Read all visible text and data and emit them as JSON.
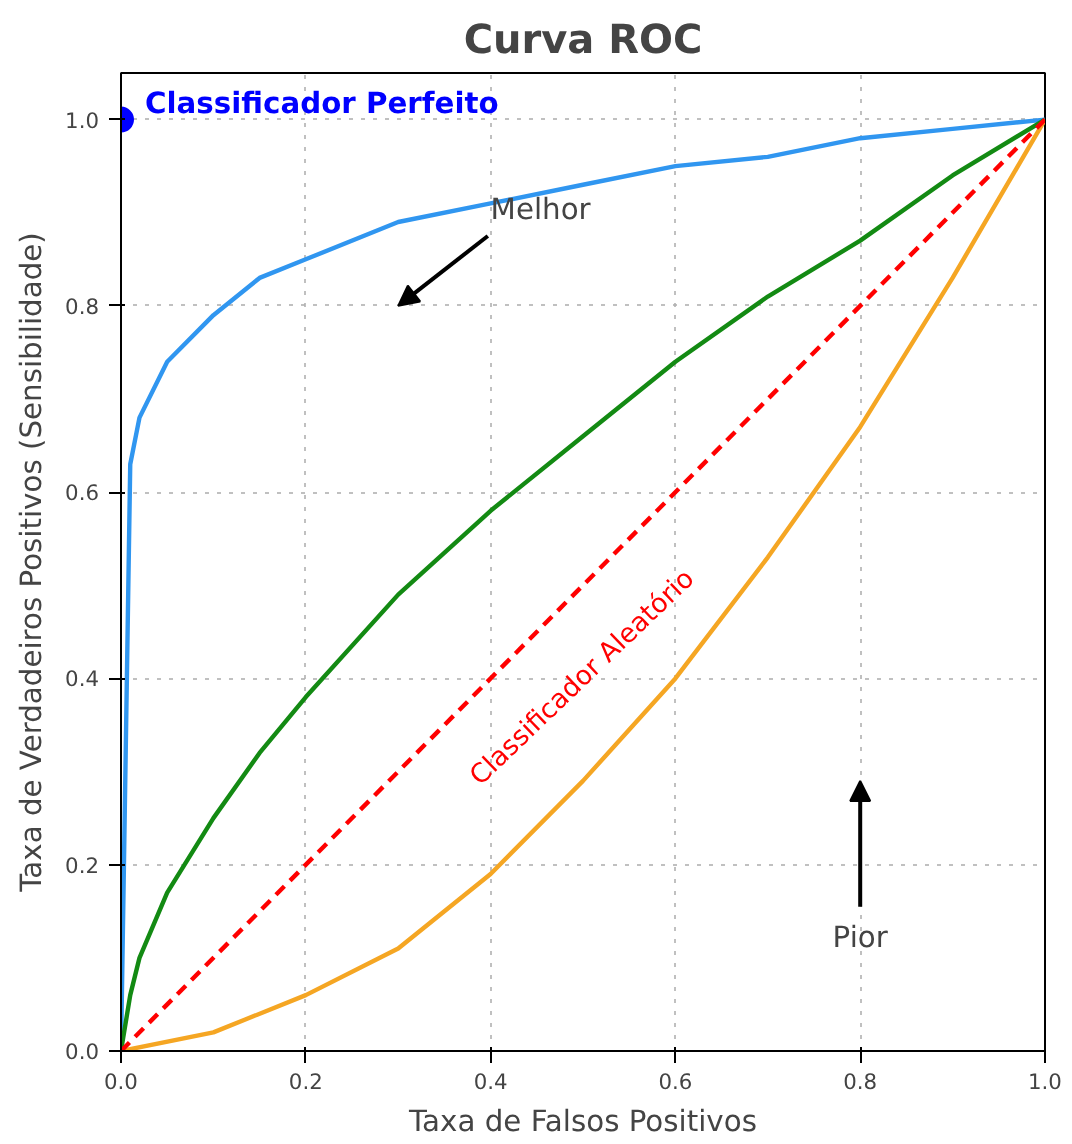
{
  "chart_data": {
    "type": "line",
    "title": "Curva ROC",
    "xlabel": "Taxa de Falsos Positivos",
    "ylabel": "Taxa de Verdadeiros Positivos (Sensibilidade)",
    "xlim": [
      0,
      1
    ],
    "ylim": [
      0,
      1.05
    ],
    "xticks": [
      {
        "value": 0,
        "label": "0.0"
      },
      0.2,
      0.4,
      0.6,
      0.8,
      {
        "value": 1,
        "label": "1.0"
      }
    ],
    "yticks": [
      {
        "value": 0,
        "label": "0.0"
      },
      0.2,
      0.4,
      0.6,
      0.8,
      {
        "value": 1,
        "label": "1.0"
      }
    ],
    "grid": true,
    "marker": "none",
    "line_style": "solid",
    "series": [
      {
        "color": "#3096f0",
        "x": [
          0,
          0.01,
          0.02,
          0.05,
          0.1,
          0.15,
          0.2,
          0.3,
          0.4,
          0.5,
          0.6,
          0.7,
          0.8,
          0.9,
          1
        ],
        "values": [
          0,
          0.63,
          0.68,
          0.74,
          0.79,
          0.83,
          0.85,
          0.89,
          0.91,
          0.93,
          0.95,
          0.96,
          0.98,
          0.99,
          1
        ]
      },
      {
        "color": "#138a13",
        "x": [
          0,
          0.01,
          0.02,
          0.05,
          0.1,
          0.15,
          0.2,
          0.3,
          0.4,
          0.5,
          0.6,
          0.7,
          0.8,
          0.9,
          1
        ],
        "values": [
          0,
          0.06,
          0.1,
          0.17,
          0.25,
          0.32,
          0.38,
          0.49,
          0.58,
          0.66,
          0.74,
          0.81,
          0.87,
          0.94,
          1
        ]
      },
      {
        "color": "#f5a623",
        "x": [
          0,
          0.1,
          0.2,
          0.3,
          0.4,
          0.5,
          0.6,
          0.7,
          0.8,
          0.9,
          1
        ],
        "values": [
          0,
          0.02,
          0.06,
          0.11,
          0.19,
          0.29,
          0.4,
          0.53,
          0.67,
          0.83,
          1
        ]
      },
      {
        "color": "#ff0000",
        "line_style": "dashed",
        "x": [
          0,
          1
        ],
        "values": [
          0,
          1
        ]
      },
      {
        "type": "scatter",
        "marker": "circle",
        "color": "#0000ff",
        "x": [
          0
        ],
        "values": [
          1
        ]
      }
    ],
    "annotations": [
      {
        "text": "Classificador Perfeito",
        "x": 0,
        "y": 1
      },
      "Melhor",
      "Pior",
      "Classificador Aleatório"
    ]
  }
}
